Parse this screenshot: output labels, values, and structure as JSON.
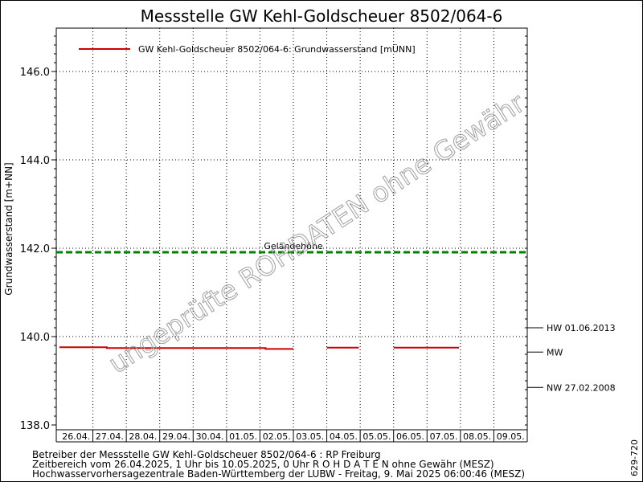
{
  "chart_data": {
    "type": "line",
    "title": "Messstelle GW Kehl-Goldscheuer 8502/064-6",
    "ylabel": "Grundwasserstand [m+NN]",
    "ylim": [
      138.0,
      147.0
    ],
    "y_ticks": [
      "138.0",
      "140.0",
      "142.0",
      "144.0",
      "146.0"
    ],
    "x_range": [
      "2025-04-26 00:00",
      "2025-05-10 00:00"
    ],
    "categories": [
      "26.04.",
      "27.04.",
      "28.04.",
      "29.04.",
      "30.04.",
      "01.05.",
      "02.05.",
      "03.05.",
      "04.05.",
      "05.05.",
      "06.05.",
      "07.05.",
      "08.05.",
      "09.05."
    ],
    "grid": true,
    "legend_position": "top-left",
    "series": [
      {
        "name": "GW Kehl-Goldscheuer 8502/064-6: Grundwasserstand  [mÜNN]",
        "color": "#cc0000",
        "segments": [
          [
            [
              "2025-04-26 00:00",
              139.76
            ],
            [
              "2025-04-27 10:00",
              139.76
            ],
            [
              "2025-04-27 10:00",
              139.74
            ],
            [
              "2025-05-02 04:00",
              139.74
            ],
            [
              "2025-05-02 04:00",
              139.72
            ],
            [
              "2025-05-03 00:00",
              139.72
            ]
          ],
          [
            [
              "2025-05-04 00:00",
              139.75
            ],
            [
              "2025-05-04 23:00",
              139.75
            ]
          ],
          [
            [
              "2025-05-06 00:00",
              139.75
            ],
            [
              "2025-05-07 23:00",
              139.75
            ]
          ]
        ]
      }
    ],
    "reference_lines": [
      {
        "label": "Geländehöhe",
        "value": 141.91,
        "color": "#008000",
        "style": "dashed"
      }
    ],
    "side_markers": [
      {
        "label": "HW 01.06.2013",
        "value": 140.2
      },
      {
        "label": "MW",
        "value": 139.65
      },
      {
        "label": "NW 27.02.2008",
        "value": 138.85
      }
    ],
    "watermark": "ungeprüfte ROHDATEN ohne Gewähr"
  },
  "footer": {
    "line1": "Betreiber der Messstelle GW Kehl-Goldscheuer 8502/064-6 : RP Freiburg",
    "line2": "Zeitbereich vom 26.04.2025, 1 Uhr bis 10.05.2025, 0 Uhr   R O H D A T E N ohne Gewähr (MESZ)",
    "line3": "Hochwasservorhersagezentrale Baden-Württemberg der LUBW - Freitag, 9. Mai 2025 06:00:46 (MESZ)",
    "code": "629-720"
  }
}
